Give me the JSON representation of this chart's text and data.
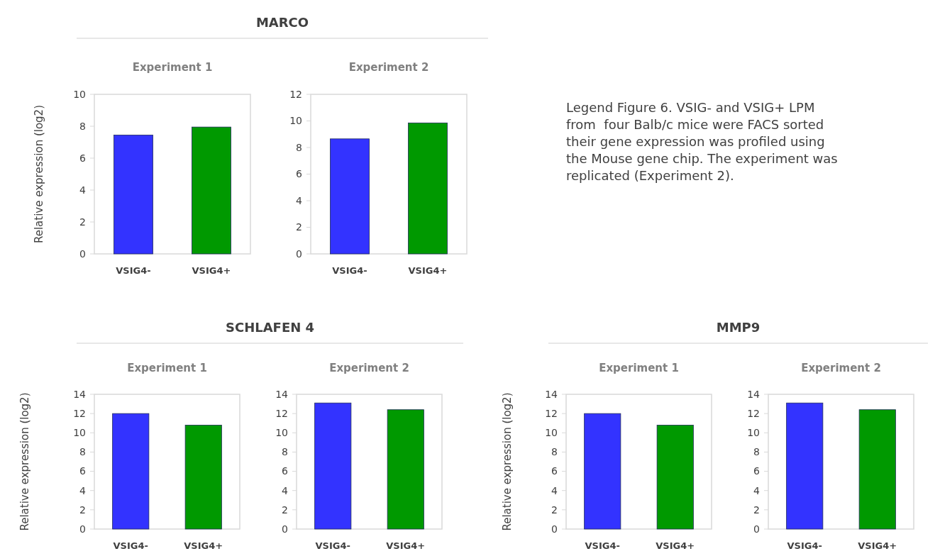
{
  "chart_data": [
    {
      "type": "bar",
      "title": "MARCO",
      "subtitle": "Experiment 1",
      "ylabel": "Relative expression (log2)",
      "categories": [
        "VSIG4-",
        "VSIG4+"
      ],
      "values": [
        7.45,
        7.95
      ],
      "colors": [
        "#3333ff",
        "#009900"
      ],
      "ylim": [
        0,
        10
      ],
      "yticks": [
        0,
        2,
        4,
        6,
        8,
        10
      ]
    },
    {
      "type": "bar",
      "subtitle": "Experiment 2",
      "categories": [
        "VSIG4-",
        "VSIG4+"
      ],
      "values": [
        8.65,
        9.85
      ],
      "colors": [
        "#3333ff",
        "#009900"
      ],
      "ylim": [
        0,
        12
      ],
      "yticks": [
        0,
        2,
        4,
        6,
        8,
        10,
        12
      ]
    },
    {
      "type": "other",
      "annotations": [
        "Legend Figure 6. VSIG- and VSIG+ LPM from  four Balb/c mice were FACS sorted their gene expression was profiled using the Mouse gene chip. The experiment was replicated (Experiment 2)."
      ]
    },
    {
      "type": "bar",
      "title": "SCHLAFEN 4",
      "subtitle": "Experiment 1",
      "ylabel": "Relative expression (log2)",
      "categories": [
        "VSIG4-",
        "VSIG4+"
      ],
      "values": [
        12.0,
        10.8
      ],
      "colors": [
        "#3333ff",
        "#009900"
      ],
      "ylim": [
        0,
        14
      ],
      "yticks": [
        0,
        2,
        4,
        6,
        8,
        10,
        12,
        14
      ]
    },
    {
      "type": "bar",
      "subtitle": "Experiment 2",
      "categories": [
        "VSIG4-",
        "VSIG4+"
      ],
      "values": [
        13.1,
        12.4
      ],
      "colors": [
        "#3333ff",
        "#009900"
      ],
      "ylim": [
        0,
        14
      ],
      "yticks": [
        0,
        2,
        4,
        6,
        8,
        10,
        12,
        14
      ]
    },
    {
      "type": "bar",
      "title": "MMP9",
      "subtitle": "Experiment 1",
      "ylabel": "Relative expression (log2)",
      "categories": [
        "VSIG4-",
        "VSIG4+"
      ],
      "values": [
        12.0,
        10.8
      ],
      "colors": [
        "#3333ff",
        "#009900"
      ],
      "ylim": [
        0,
        14
      ],
      "yticks": [
        0,
        2,
        4,
        6,
        8,
        10,
        12,
        14
      ]
    },
    {
      "type": "bar",
      "subtitle": "Experiment 2",
      "categories": [
        "VSIG4-",
        "VSIG4+"
      ],
      "values": [
        13.1,
        12.4
      ],
      "colors": [
        "#3333ff",
        "#009900"
      ],
      "ylim": [
        0,
        14
      ],
      "yticks": [
        0,
        2,
        4,
        6,
        8,
        10,
        12,
        14
      ]
    }
  ]
}
